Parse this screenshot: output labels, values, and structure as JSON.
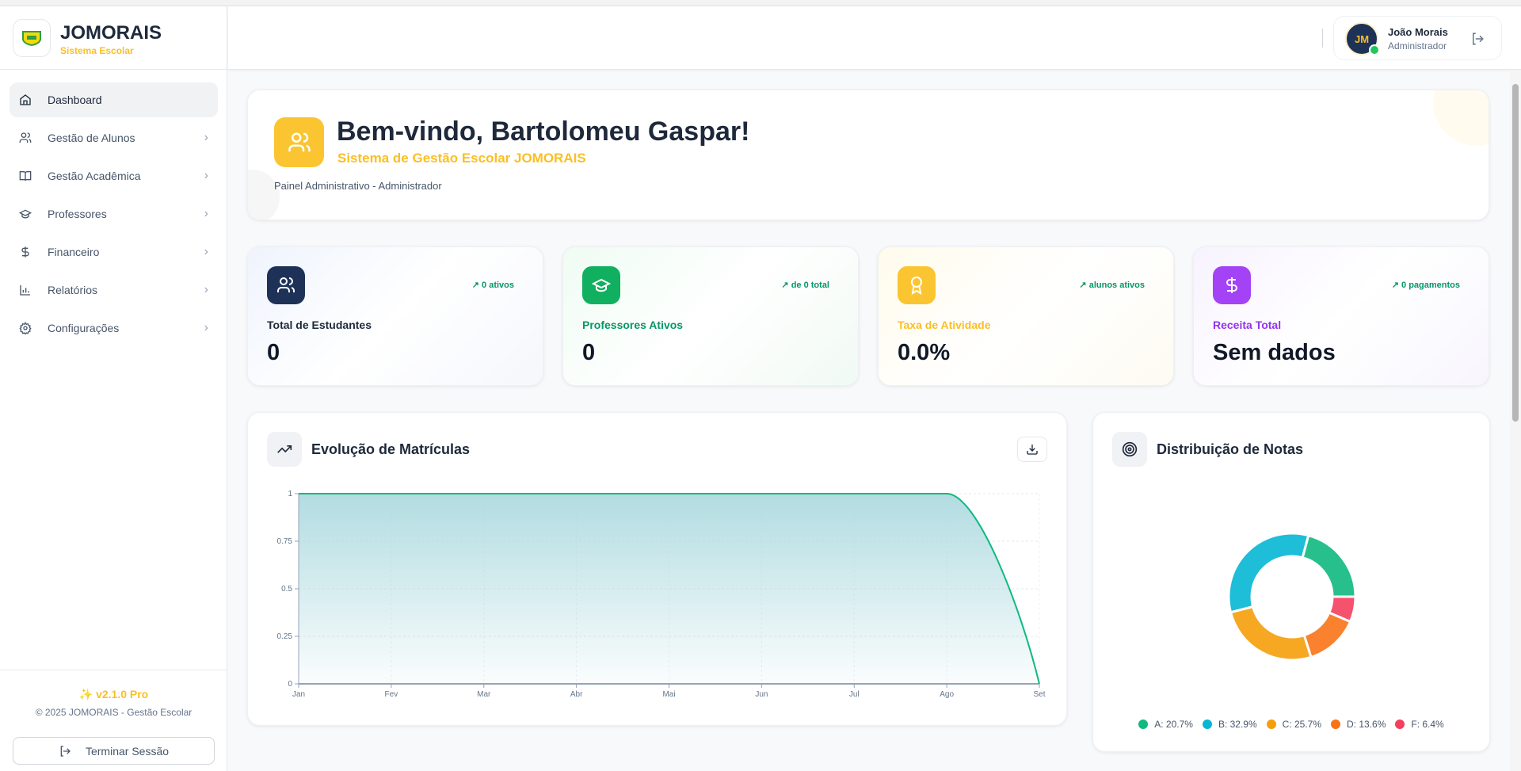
{
  "sidebar": {
    "brand": "JOMORAIS",
    "brand_sub": "Sistema Escolar",
    "items": [
      {
        "label": "Dashboard",
        "icon": "home-icon",
        "active": true
      },
      {
        "label": "Gestão de Alunos",
        "icon": "users-icon"
      },
      {
        "label": "Gestão Acadêmica",
        "icon": "book-icon"
      },
      {
        "label": "Professores",
        "icon": "graduation-cap-icon"
      },
      {
        "label": "Financeiro",
        "icon": "dollar-icon"
      },
      {
        "label": "Relatórios",
        "icon": "bar-chart-icon"
      },
      {
        "label": "Configurações",
        "icon": "gear-icon"
      }
    ],
    "version": "v2.1.0 Pro",
    "copyright": "© 2025 JOMORAIS - Gestão Escolar",
    "logout_label": "Terminar Sessão"
  },
  "header": {
    "user_initials": "JM",
    "user_name": "João Morais",
    "user_role": "Administrador"
  },
  "welcome": {
    "title": "Bem-vindo, Bartolomeu Gaspar!",
    "subtitle": "Sistema de Gestão Escolar JOMORAIS",
    "panel": "Painel Administrativo - Administrador"
  },
  "stats": [
    {
      "label": "Total de Estudantes",
      "value": "0",
      "badge": "0 ativos",
      "color": "#1e3258",
      "label_color": "#1e293b"
    },
    {
      "label": "Professores Ativos",
      "value": "0",
      "badge": "de 0 total",
      "color": "#10b060",
      "label_color": "#059669"
    },
    {
      "label": "Taxa de Atividade",
      "value": "0.0%",
      "badge": "alunos ativos",
      "color": "#fbc531",
      "label_color": "#fbbf24"
    },
    {
      "label": "Receita Total",
      "value": "Sem dados",
      "badge": "0 pagamentos",
      "color": "#a343f5",
      "label_color": "#9333ea"
    }
  ],
  "chart_data": [
    {
      "type": "area",
      "title": "Evolução de Matrículas",
      "categories": [
        "Jan",
        "Fev",
        "Mar",
        "Abr",
        "Mai",
        "Jun",
        "Jul",
        "Ago",
        "Set"
      ],
      "values": [
        1,
        1,
        1,
        1,
        1,
        1,
        1,
        1,
        0
      ],
      "yticks": [
        "0",
        "0.25",
        "0.5",
        "0.75",
        "1"
      ],
      "ylim": [
        0,
        1
      ],
      "grid": true,
      "color": "#10b981"
    },
    {
      "type": "pie",
      "title": "Distribuição de Notas",
      "labels": [
        "A",
        "B",
        "C",
        "D",
        "F"
      ],
      "values": [
        20.7,
        32.9,
        25.7,
        13.6,
        6.4
      ],
      "legend_labels": [
        "A: 20.7%",
        "B: 32.9%",
        "C: 25.7%",
        "D: 13.6%",
        "F: 6.4%"
      ],
      "colors": [
        "#10b981",
        "#06b6d4",
        "#f59e0b",
        "#f97316",
        "#f43f5e"
      ],
      "legend": "bottom"
    }
  ]
}
